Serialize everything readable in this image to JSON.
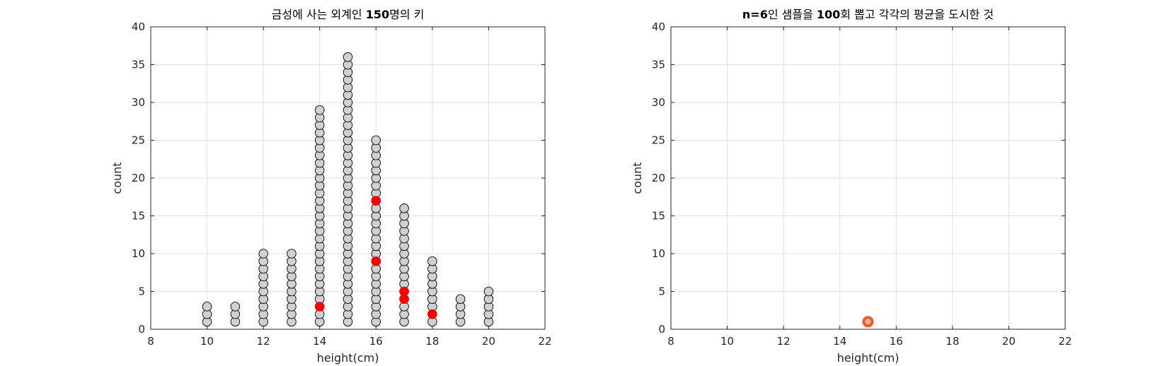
{
  "chart_data": [
    {
      "type": "scatter",
      "title_parts": [
        "금성에 사는 외계인 ",
        "150",
        "명의 키"
      ],
      "xlabel": "height(cm)",
      "ylabel": "count",
      "xlim": [
        8,
        22
      ],
      "ylim": [
        0,
        40
      ],
      "xticks": [
        "8",
        "10",
        "12",
        "14",
        "16",
        "18",
        "20",
        "22"
      ],
      "yticks": [
        "0",
        "5",
        "10",
        "15",
        "20",
        "25",
        "30",
        "35",
        "40"
      ],
      "grid": true,
      "population_counts": [
        {
          "x": 10,
          "count": 3
        },
        {
          "x": 11,
          "count": 3
        },
        {
          "x": 12,
          "count": 10
        },
        {
          "x": 13,
          "count": 10
        },
        {
          "x": 14,
          "count": 29
        },
        {
          "x": 15,
          "count": 36
        },
        {
          "x": 16,
          "count": 25
        },
        {
          "x": 17,
          "count": 16
        },
        {
          "x": 18,
          "count": 9
        },
        {
          "x": 19,
          "count": 4
        },
        {
          "x": 20,
          "count": 5
        }
      ],
      "sampled_points": [
        {
          "x": 14,
          "y": 3
        },
        {
          "x": 16,
          "y": 9
        },
        {
          "x": 16,
          "y": 17
        },
        {
          "x": 17,
          "y": 4
        },
        {
          "x": 17,
          "y": 5
        },
        {
          "x": 18,
          "y": 2
        }
      ],
      "colors": {
        "population": "#d0d0d0",
        "sampled": "#ff0000",
        "edge": "#000000"
      }
    },
    {
      "type": "scatter",
      "title_parts": [
        "n=6",
        "인 샘플을 ",
        "100",
        "회 뽑고 각각의 평균을 도시한 것"
      ],
      "xlabel": "height(cm)",
      "ylabel": "count",
      "xlim": [
        8,
        22
      ],
      "ylim": [
        0,
        40
      ],
      "xticks": [
        "8",
        "10",
        "12",
        "14",
        "16",
        "18",
        "20",
        "22"
      ],
      "yticks": [
        "0",
        "5",
        "10",
        "15",
        "20",
        "25",
        "30",
        "35",
        "40"
      ],
      "grid": true,
      "mean_points": [
        {
          "x": 15,
          "y": 1
        }
      ],
      "colors": {
        "mean": "#f05a28"
      }
    }
  ]
}
